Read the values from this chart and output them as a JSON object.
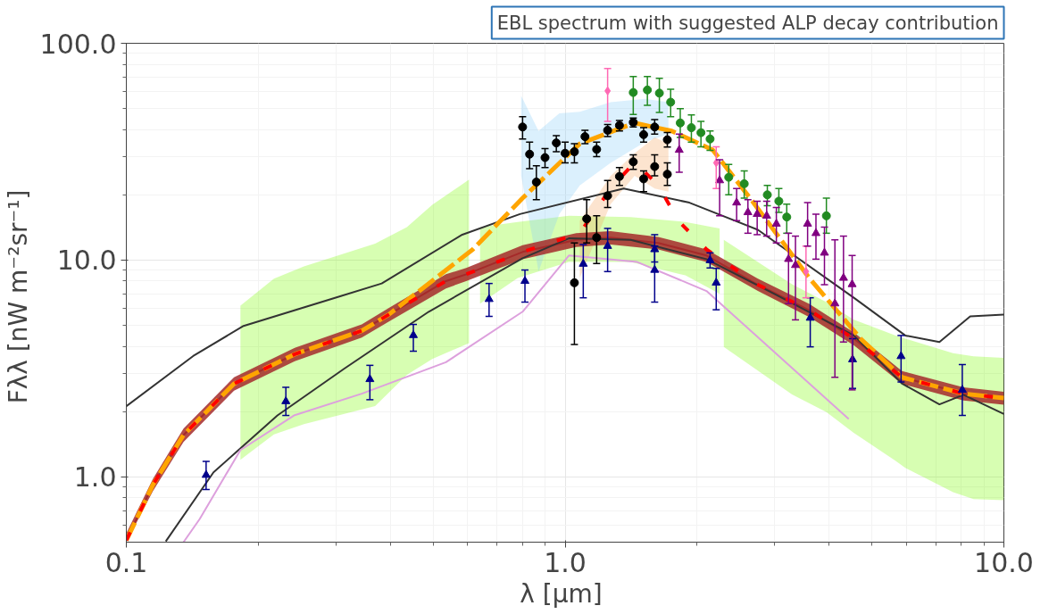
{
  "chart_data": {
    "type": "line",
    "title": "EBL spectrum with suggested ALP decay contribution",
    "xlabel": "λ  [μm]",
    "ylabel": "Fλλ  [nW m⁻²sr⁻¹]",
    "log": "xy",
    "grid": true,
    "xlim": [
      0.1,
      10
    ],
    "ylim": [
      0.5,
      100
    ],
    "xticks": [
      {
        "value": 0.1,
        "label": "0.1"
      },
      {
        "value": 1,
        "label": "1.0"
      },
      {
        "value": 10,
        "label": "10.0"
      }
    ],
    "yticks": [
      {
        "value": 1,
        "label": "1.0"
      },
      {
        "value": 10,
        "label": "10.0"
      },
      {
        "value": 100,
        "label": "100.0"
      }
    ],
    "series": [
      {
        "color": "#7cfc00",
        "x": [
          0.182,
          0.217,
          0.254,
          0.369,
          0.436,
          0.498,
          0.604
        ],
        "values": [
          null,
          null,
          null,
          null,
          null,
          null,
          null
        ],
        "upper": [
          6.17,
          8.2,
          9.35,
          11.9,
          14.2,
          18.0,
          23.5
        ],
        "lower": [
          1.2,
          1.57,
          1.75,
          2.12,
          2.96,
          3.5,
          4.14
        ]
      },
      {
        "color": "#7cfc00",
        "x": [
          0.64,
          0.78,
          1.02,
          1.41,
          1.88,
          2.25
        ],
        "values": [
          null,
          null,
          null,
          null,
          null,
          null
        ],
        "upper": [
          14.2,
          15.0,
          16.0,
          15.8,
          15.0,
          14.0
        ],
        "lower": [
          6.3,
          8.27,
          9.8,
          9.8,
          8.5,
          6.98
        ]
      },
      {
        "color": "#7cfc00",
        "x": [
          2.3,
          3.29,
          3.94,
          4.54,
          5.65,
          5.96,
          7.66,
          8.53,
          10
        ],
        "values": [
          null,
          null,
          null,
          null,
          null,
          null,
          null,
          null,
          null
        ],
        "upper": [
          12.4,
          7.73,
          6.4,
          5.32,
          4.5,
          4.34,
          3.72,
          3.6,
          3.54
        ],
        "lower": [
          3.98,
          2.4,
          1.99,
          1.6,
          1.19,
          1.1,
          0.85,
          0.79,
          0.78
        ]
      },
      {
        "color": "#87cefa",
        "x": [
          0.794,
          0.87,
          0.97,
          1.08,
          1.27,
          1.52,
          1.72
        ],
        "values": [
          null,
          null,
          null,
          null,
          null,
          null,
          null
        ],
        "upper": [
          57.3,
          39.4,
          47.5,
          48.3,
          53.5,
          55.4,
          53.5
        ],
        "lower": [
          24.5,
          8.85,
          16.3,
          22.1,
          28.1,
          35.0,
          38.1
        ]
      },
      {
        "color": "#f4a460",
        "x": [
          1.08,
          1.27,
          1.44,
          1.6,
          1.72
        ],
        "values": [
          null,
          null,
          null,
          null,
          null
        ],
        "upper": [
          15.2,
          24.5,
          31.1,
          36.8,
          34.4
        ],
        "lower": [
          8.27,
          18.1,
          24.5,
          21.4,
          20.7
        ]
      },
      {
        "color": "#333333",
        "line_style": "solid",
        "x": [
          0.1,
          0.142,
          0.185,
          0.299,
          0.382,
          0.583,
          0.789,
          1.36,
          1.92,
          2.75,
          4.55,
          5.96,
          7.13,
          8.38,
          10
        ],
        "values": [
          2.12,
          3.61,
          4.97,
          6.7,
          7.8,
          13.1,
          16.3,
          21.4,
          18.4,
          13.8,
          6.7,
          4.49,
          4.19,
          5.5,
          5.6
        ]
      },
      {
        "color": "#333333",
        "line_style": "solid",
        "x": [
          0.123,
          0.158,
          0.221,
          0.314,
          0.489,
          0.8,
          1.02,
          1.41,
          2.1,
          3.0,
          4.55,
          5.85,
          7.13,
          8.09,
          10
        ],
        "values": [
          0.504,
          1.05,
          1.92,
          3.16,
          5.78,
          10.2,
          12.6,
          12.4,
          10.1,
          6.98,
          4.49,
          2.7,
          2.16,
          2.39,
          1.95
        ]
      },
      {
        "color": "#dda0dd",
        "line_style": "solid",
        "x": [
          0.135,
          0.147,
          0.182,
          0.241,
          0.344,
          0.535,
          0.8,
          1.02,
          1.46,
          2.1,
          4.43
        ],
        "values": [
          0.5,
          0.64,
          1.33,
          1.92,
          2.42,
          3.38,
          5.78,
          10.5,
          9.8,
          7.2,
          1.85
        ]
      },
      {
        "color": "#a52a2a",
        "line_style": "solid",
        "x": [
          0.1,
          0.115,
          0.135,
          0.176,
          0.242,
          0.344,
          0.396,
          0.535,
          0.595,
          0.8,
          1.06,
          1.27,
          1.63,
          2.1,
          2.75,
          3.6,
          4.56,
          5.86,
          8.09,
          10
        ],
        "values": [
          0.51,
          0.92,
          1.56,
          2.69,
          3.68,
          4.72,
          5.6,
          8.0,
          8.6,
          10.9,
          12.4,
          12.7,
          12.0,
          10.5,
          7.7,
          5.87,
          4.33,
          2.88,
          2.42,
          2.31
        ],
        "lower": [
          0.5,
          0.86,
          1.45,
          2.5,
          3.42,
          4.39,
          5.2,
          7.4,
          8.0,
          10.1,
          11.5,
          11.8,
          11.2,
          9.8,
          7.2,
          5.46,
          4.03,
          2.68,
          2.25,
          2.15
        ],
        "upper": [
          0.55,
          0.98,
          1.67,
          2.88,
          3.94,
          5.05,
          6.0,
          8.6,
          9.2,
          11.7,
          13.3,
          13.6,
          12.8,
          11.2,
          8.2,
          6.28,
          4.63,
          3.08,
          2.59,
          2.47
        ]
      },
      {
        "color": "#ffa500",
        "line_style": "dashed",
        "x": [
          0.1,
          0.115,
          0.135,
          0.176,
          0.242,
          0.344,
          0.396,
          0.616,
          0.8,
          1.08,
          1.44,
          1.75,
          2.17,
          2.64,
          3.6,
          4.72,
          5.86,
          8.09,
          10
        ],
        "values": [
          0.51,
          0.92,
          1.56,
          2.69,
          3.68,
          4.72,
          5.6,
          11.2,
          19.3,
          34.4,
          42.9,
          39.4,
          32.2,
          19.3,
          8.27,
          4.33,
          2.88,
          2.42,
          2.31
        ]
      },
      {
        "color": "#ff0000",
        "line_style": "dashed",
        "x": [
          0.1,
          0.115,
          0.135,
          0.176,
          0.242,
          0.344,
          0.396,
          0.535,
          0.595,
          0.8,
          1.08,
          1.27,
          1.44,
          1.63,
          1.81,
          2.1,
          2.75,
          3.6,
          4.56,
          5.86,
          8.09,
          10
        ],
        "values": [
          0.51,
          0.92,
          1.56,
          2.69,
          3.68,
          4.72,
          5.6,
          8.0,
          8.6,
          10.9,
          13.3,
          21.4,
          28.2,
          22.2,
          15.2,
          11.2,
          7.7,
          5.87,
          4.33,
          2.88,
          2.42,
          2.31
        ]
      },
      {
        "type": "scatter",
        "color": "#000000",
        "marker": "circle",
        "x": [
          0.8,
          0.83,
          0.86,
          0.9,
          0.955,
          1.0,
          1.05,
          1.11,
          1.18,
          1.25,
          1.33,
          1.43,
          1.51,
          1.6,
          1.71,
          1.05,
          1.12,
          1.18,
          1.25,
          1.33,
          1.43,
          1.51,
          1.6,
          1.71
        ],
        "values": [
          41.1,
          30.8,
          22.9,
          29.7,
          34.7,
          31.1,
          31.6,
          37.1,
          32.4,
          39.7,
          41.8,
          43.2,
          37.9,
          41.1,
          35.9,
          7.86,
          15.5,
          12.7,
          19.8,
          24.3,
          28.4,
          23.7,
          27.0,
          24.9
        ],
        "errors": [
          [
            36.2,
            45.9
          ],
          [
            26.4,
            35.0
          ],
          [
            19.0,
            27.2
          ],
          [
            26.7,
            32.7
          ],
          [
            31.6,
            37.5
          ],
          [
            28.1,
            35.0
          ],
          [
            28.1,
            34.4
          ],
          [
            34.4,
            39.7
          ],
          [
            30.0,
            35.0
          ],
          [
            37.1,
            42.2
          ],
          [
            39.4,
            44.0
          ],
          [
            41.1,
            45.2
          ],
          [
            35.0,
            40.8
          ],
          [
            38.1,
            44.5
          ],
          [
            33.2,
            38.8
          ],
          [
            4.08,
            12.0
          ],
          [
            12.0,
            19.0
          ],
          [
            9.64,
            16.0
          ],
          [
            17.5,
            23.3
          ],
          [
            22.1,
            26.7
          ],
          [
            26.2,
            30.6
          ],
          [
            20.7,
            25.8
          ],
          [
            24.5,
            30.6
          ],
          [
            22.1,
            28.1
          ]
        ]
      },
      {
        "type": "scatter",
        "color": "#00008b",
        "marker": "triangle",
        "x": [
          0.152,
          0.231,
          0.359,
          0.451,
          0.671,
          0.81,
          1.1,
          1.25,
          1.6,
          1.6,
          2.14,
          2.21,
          3.62,
          4.52,
          5.83,
          8.04
        ],
        "values": [
          1.02,
          2.23,
          2.82,
          4.5,
          6.6,
          8.0,
          9.6,
          11.6,
          11.2,
          9.0,
          9.97,
          7.86,
          5.41,
          3.48,
          3.6,
          2.52
        ],
        "errors": [
          [
            0.875,
            1.18
          ],
          [
            1.92,
            2.59
          ],
          [
            2.27,
            3.27
          ],
          [
            3.8,
            5.05
          ],
          [
            5.5,
            7.8
          ],
          [
            6.4,
            9.0
          ],
          [
            6.7,
            11.8
          ],
          [
            8.85,
            14.0
          ],
          [
            9.8,
            13.1
          ],
          [
            6.4,
            11.6
          ],
          [
            9.2,
            10.8
          ],
          [
            5.9,
            9.16
          ],
          [
            3.98,
            6.7
          ],
          [
            2.56,
            4.34
          ],
          [
            2.74,
            4.49
          ],
          [
            1.92,
            3.3
          ]
        ]
      },
      {
        "type": "scatter",
        "color": "#228b22",
        "marker": "circle",
        "x": [
          1.43,
          1.54,
          1.64,
          1.74,
          1.83,
          1.94,
          2.04,
          2.14,
          2.36,
          2.56,
          2.89,
          3.07,
          3.2,
          3.94
        ],
        "values": [
          59.3,
          60.9,
          58.9,
          53.5,
          42.9,
          40.8,
          38.7,
          36.2,
          24.1,
          22.5,
          20.0,
          18.7,
          15.8,
          16.0
        ],
        "errors": [
          [
            47.0,
            70.3
          ],
          [
            51.7,
            70.3
          ],
          [
            48.0,
            69.0
          ],
          [
            45.9,
            61.4
          ],
          [
            36.8,
            50.0
          ],
          [
            35.0,
            46.7
          ],
          [
            33.3,
            43.6
          ],
          [
            32.1,
            39.4
          ],
          [
            20.0,
            27.6
          ],
          [
            19.3,
            25.8
          ],
          [
            17.8,
            22.1
          ],
          [
            16.6,
            21.4
          ],
          [
            13.3,
            18.1
          ],
          [
            13.3,
            19.3
          ]
        ]
      },
      {
        "type": "scatter",
        "color": "#ff69b4",
        "marker": "diamond",
        "x": [
          1.25,
          2.21,
          3.54
        ],
        "values": [
          60.3,
          28.1,
          8.85
        ],
        "errors": [
          [
            43.6,
            76.5
          ],
          [
            21.4,
            33.3
          ],
          [
            6.7,
            11.6
          ]
        ]
      },
      {
        "type": "scatter",
        "color": "#800080",
        "marker": "triangle",
        "x": [
          1.82,
          2.25,
          2.46,
          2.61,
          2.74,
          2.88,
          3.03,
          3.23,
          3.35,
          3.57,
          3.73,
          3.9,
          4.12,
          4.31,
          4.51
        ],
        "values": [
          32.2,
          23.3,
          18.4,
          16.6,
          16.3,
          16.0,
          14.7,
          10.1,
          9.47,
          14.7,
          13.3,
          10.8,
          6.3,
          8.27,
          7.73
        ],
        "errors": [
          [
            25.4,
            38.1
          ],
          [
            16.0,
            29.0
          ],
          [
            15.2,
            21.4
          ],
          [
            13.3,
            19.0
          ],
          [
            13.1,
            18.7
          ],
          [
            12.9,
            18.7
          ],
          [
            12.0,
            17.5
          ],
          [
            6.3,
            13.3
          ],
          [
            5.3,
            12.9
          ],
          [
            11.6,
            18.4
          ],
          [
            10.1,
            16.3
          ],
          [
            7.7,
            14.2
          ],
          [
            2.88,
            12.4
          ],
          [
            4.19,
            12.9
          ],
          [
            2.52,
            10.5
          ]
        ]
      }
    ]
  }
}
